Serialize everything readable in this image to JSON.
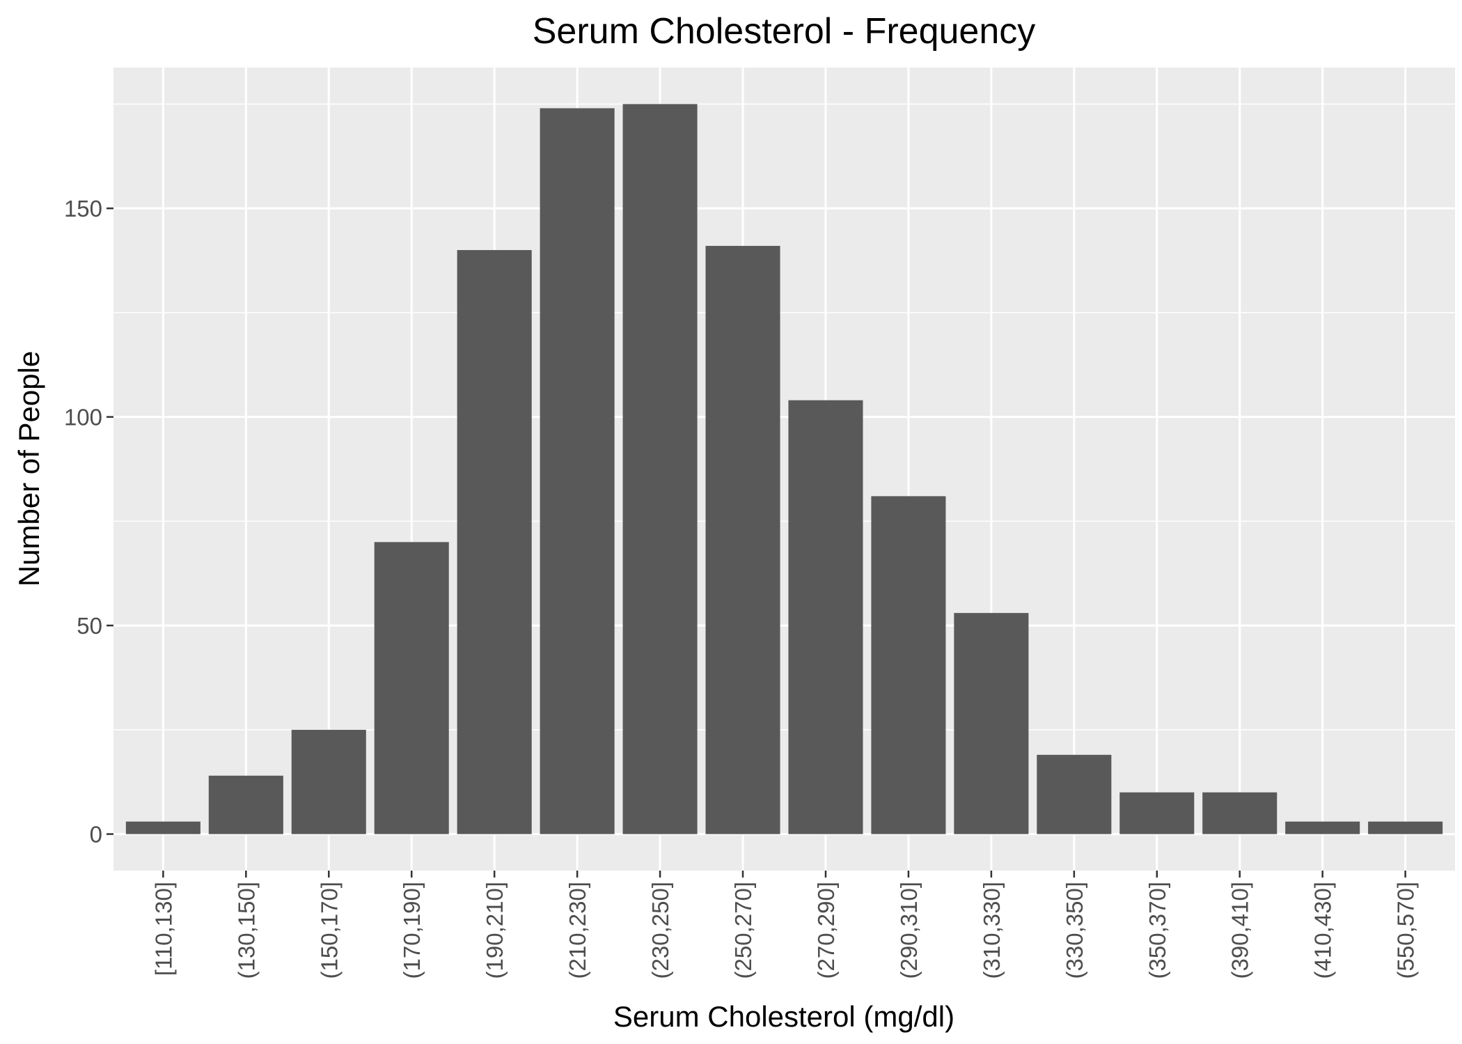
{
  "chart_data": {
    "type": "bar",
    "title": "Serum Cholesterol - Frequency",
    "xlabel": "Serum Cholesterol (mg/dl)",
    "ylabel": "Number of People",
    "categories": [
      "[110,130]",
      "(130,150]",
      "(150,170]",
      "(170,190]",
      "(190,210]",
      "(210,230]",
      "(230,250]",
      "(250,270]",
      "(270,290]",
      "(290,310]",
      "(310,330]",
      "(330,350]",
      "(350,370]",
      "(390,410]",
      "(410,430]",
      "(550,570]"
    ],
    "values": [
      3,
      14,
      25,
      70,
      140,
      174,
      175,
      141,
      104,
      81,
      53,
      19,
      10,
      10,
      3,
      3
    ],
    "yticks": [
      0,
      50,
      100,
      150
    ],
    "ylim": [
      -8.75,
      183.75
    ],
    "grid": true,
    "legend": "none",
    "colors": {
      "bar": "#595959",
      "panel": "#ebebeb",
      "grid": "#ffffff",
      "tick_text": "#4d4d4d",
      "tick_mark": "#333333",
      "title_text": "#000000"
    }
  }
}
